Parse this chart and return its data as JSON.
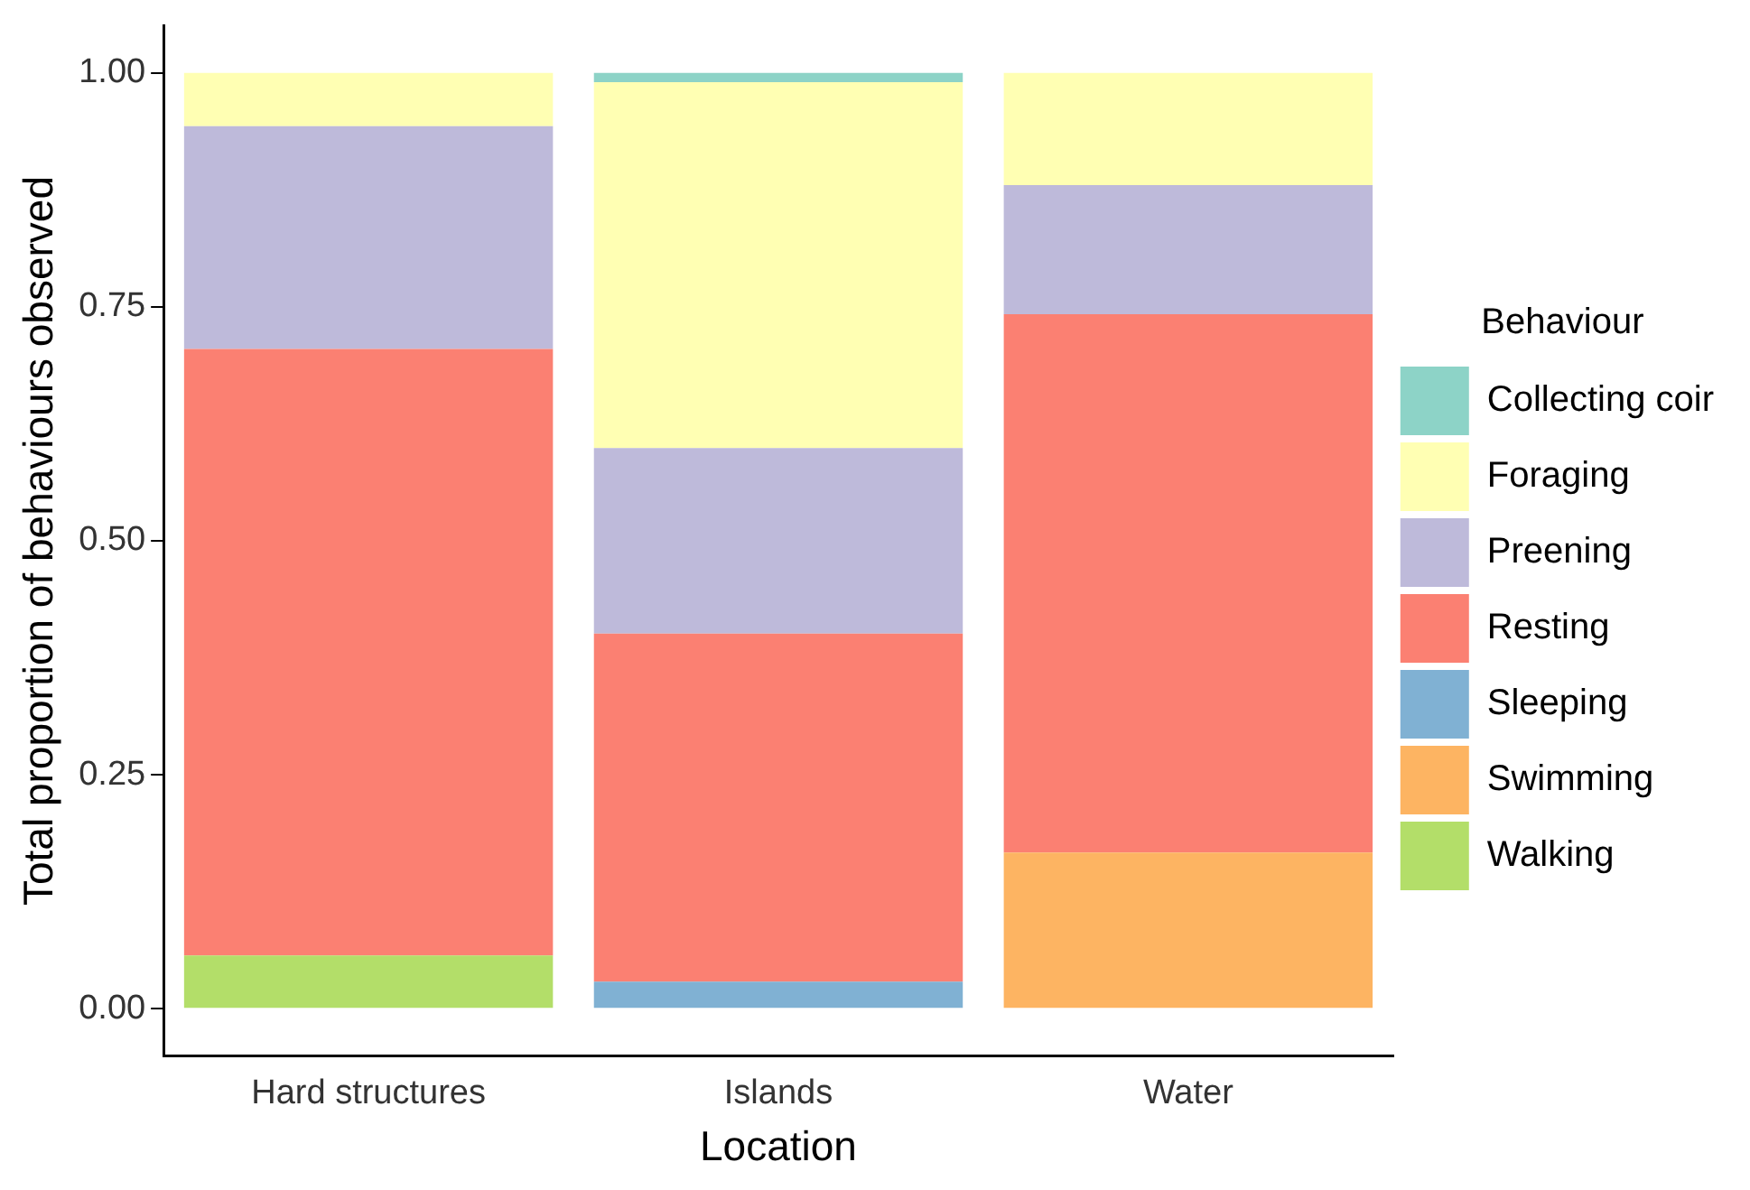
{
  "chart_data": {
    "type": "bar",
    "stacked": true,
    "xlabel": "Location",
    "ylabel": "Total proportion of behaviours observed",
    "legend_title": "Behaviour",
    "legend": "right",
    "grid": false,
    "categories": [
      "Hard structures",
      "Islands",
      "Water"
    ],
    "ylim": [
      -0.05,
      1.05
    ],
    "yticks": [
      {
        "value": 0,
        "label": "0.00"
      },
      {
        "value": 0.25,
        "label": "0.25"
      },
      {
        "value": 0.5,
        "label": "0.50"
      },
      {
        "value": 0.75,
        "label": "0.75"
      },
      {
        "value": 1,
        "label": "1.00"
      }
    ],
    "series": [
      {
        "name": "Walking",
        "color": "#b3de69",
        "values": [
          0.057,
          0,
          0
        ]
      },
      {
        "name": "Swimming",
        "color": "#fdb462",
        "values": [
          0,
          0,
          0.167
        ]
      },
      {
        "name": "Sleeping",
        "color": "#80b1d3",
        "values": [
          0,
          0.029,
          0
        ]
      },
      {
        "name": "Resting",
        "color": "#fb8072",
        "values": [
          0.648,
          0.372,
          0.575
        ]
      },
      {
        "name": "Preening",
        "color": "#bebada",
        "values": [
          0.238,
          0.198,
          0.138
        ]
      },
      {
        "name": "Foraging",
        "color": "#ffffb3",
        "values": [
          0.057,
          0.391,
          0.12
        ]
      },
      {
        "name": "Collecting coir",
        "color": "#8dd3c7",
        "values": [
          0,
          0.01,
          0
        ]
      }
    ]
  }
}
